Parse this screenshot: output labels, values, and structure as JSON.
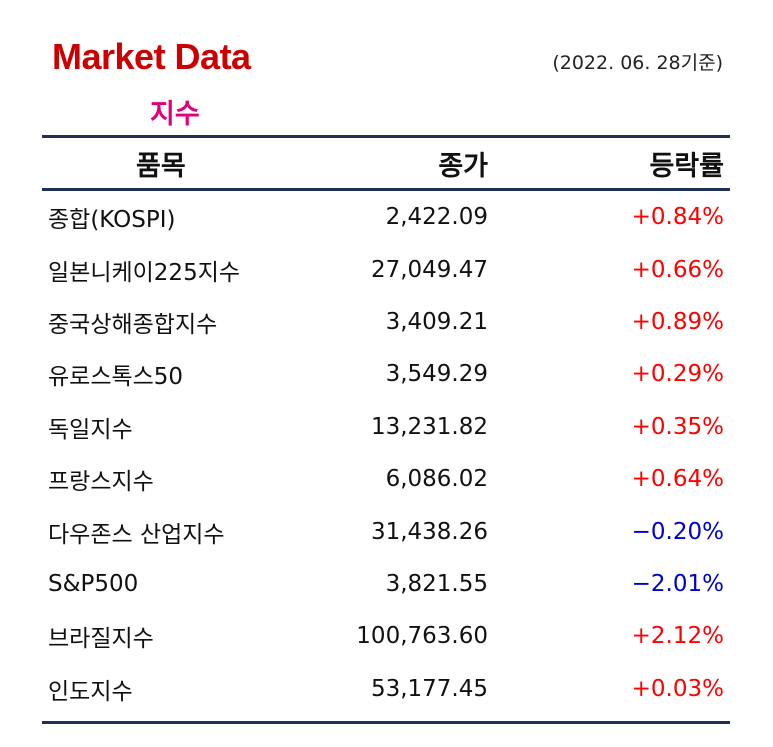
{
  "colors": {
    "title": "#cc0000",
    "subtitle": "#e0007a",
    "rule": "#1f2f55",
    "up": "#ff0000",
    "down": "#0000cc"
  },
  "title": "Market Data",
  "date": "(2022. 06. 28기준)",
  "subtitle": "지수",
  "table": {
    "headers": {
      "name": "품목",
      "close": "종가",
      "change": "등락률"
    },
    "rows": [
      {
        "name": "종합(KOSPI)",
        "close": "2,422.09",
        "change": "+0.84%",
        "direction": "up"
      },
      {
        "name": "일본니케이225지수",
        "close": "27,049.47",
        "change": "+0.66%",
        "direction": "up"
      },
      {
        "name": "중국상해종합지수",
        "close": "3,409.21",
        "change": "+0.89%",
        "direction": "up"
      },
      {
        "name": "유로스톡스50",
        "close": "3,549.29",
        "change": "+0.29%",
        "direction": "up"
      },
      {
        "name": "독일지수",
        "close": "13,231.82",
        "change": "+0.35%",
        "direction": "up"
      },
      {
        "name": "프랑스지수",
        "close": "6,086.02",
        "change": "+0.64%",
        "direction": "up"
      },
      {
        "name": "다우존스 산업지수",
        "close": "31,438.26",
        "change": "−0.20%",
        "direction": "down"
      },
      {
        "name": "S&P500",
        "close": "3,821.55",
        "change": "−2.01%",
        "direction": "down"
      },
      {
        "name": "브라질지수",
        "close": "100,763.60",
        "change": "+2.12%",
        "direction": "up"
      },
      {
        "name": "인도지수",
        "close": "53,177.45",
        "change": "+0.03%",
        "direction": "up"
      }
    ]
  }
}
